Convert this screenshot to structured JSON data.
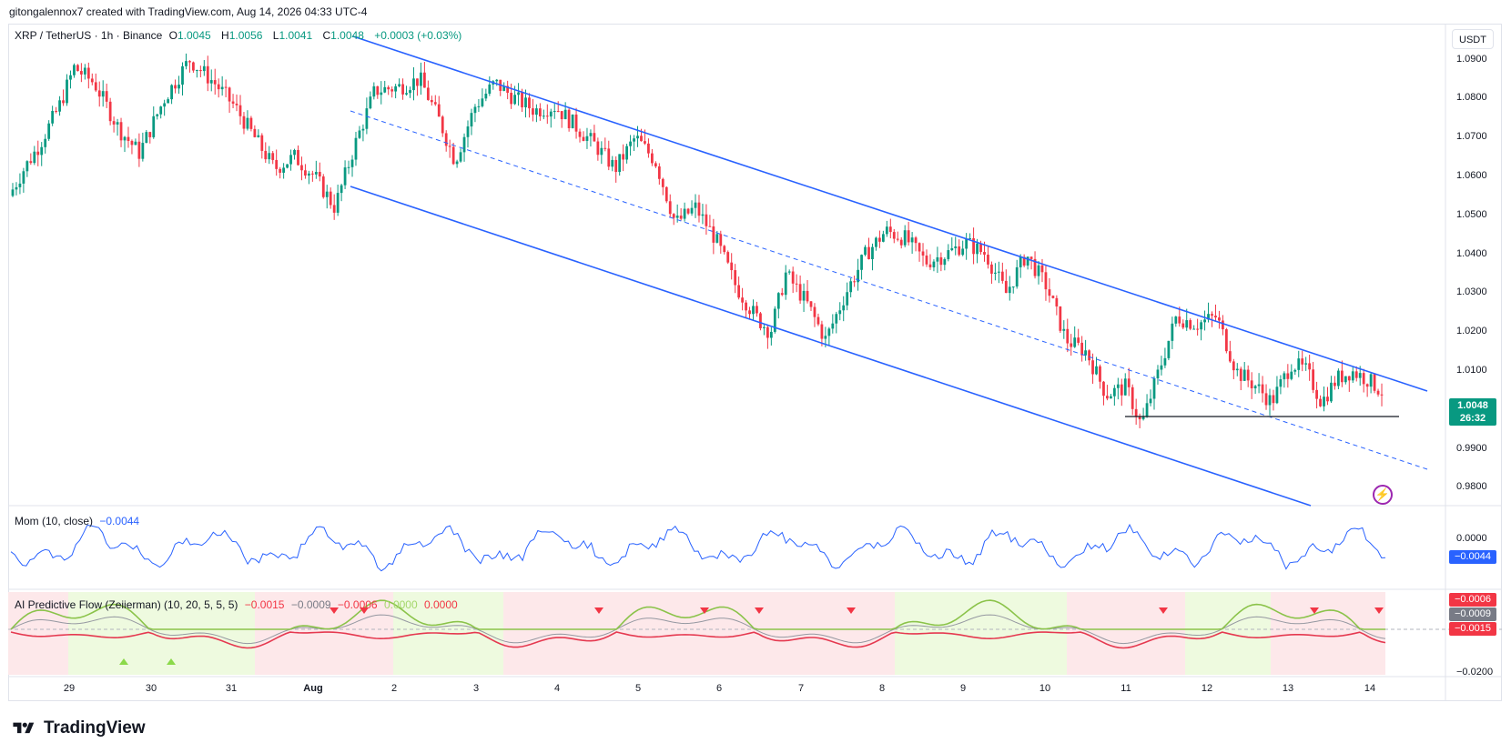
{
  "header": {
    "created_line": "gitongalennox7 created with TradingView.com, Aug 14, 2026 04:33 UTC-4"
  },
  "legend": {
    "symbol": "XRP / TetherUS · 1h · Binance",
    "open_label": "O",
    "open": "1.0045",
    "high_label": "H",
    "high": "1.0056",
    "low_label": "L",
    "low": "1.0041",
    "close_label": "C",
    "close": "1.0048",
    "change": "+0.0003 (+0.03%)"
  },
  "currency_button": "USDT",
  "price_axis": [
    "1.0900",
    "1.0800",
    "1.0700",
    "1.0600",
    "1.0500",
    "1.0400",
    "1.0300",
    "1.0200",
    "1.0100",
    "1.0000",
    "0.9900",
    "0.9800"
  ],
  "price_tag": {
    "price": "1.0048",
    "countdown": "26:32"
  },
  "momentum": {
    "title": "Mom (10, close)",
    "value": "−0.0044",
    "axis_label": "0.0000",
    "tag": "−0.0044"
  },
  "ai_flow": {
    "title": "AI Predictive Flow (Zeiierman) (10, 20, 5, 5, 5)",
    "v1": "−0.0015",
    "v2": "−0.0009",
    "v3": "−0.0006",
    "v4": "0.0000",
    "v5": "0.0000",
    "tag_a": "−0.0006",
    "tag_b": "−0.0009",
    "tag_c": "−0.0015",
    "axis_label": "−0.0200"
  },
  "time_axis": [
    "29",
    "30",
    "31",
    "Aug",
    "2",
    "3",
    "4",
    "5",
    "6",
    "7",
    "8",
    "9",
    "10",
    "11",
    "12",
    "13",
    "14"
  ],
  "brand": "TradingView",
  "colors": {
    "up": "#089981",
    "down": "#f23645",
    "channel": "#2962ff",
    "momentum": "#2962ff",
    "bull_zone": "#eefadf",
    "bear_zone": "#fde8ea"
  },
  "chart_data": {
    "type": "candlestick",
    "title": "XRP / TetherUS · 1h · Binance",
    "x_range": [
      "Jul 29",
      "Aug 14"
    ],
    "ylim": [
      0.978,
      1.095
    ],
    "price_path": [
      [
        1.055,
        0
      ],
      [
        1.062,
        6
      ],
      [
        1.068,
        12
      ],
      [
        1.078,
        20
      ],
      [
        1.088,
        26
      ],
      [
        1.084,
        34
      ],
      [
        1.072,
        44
      ],
      [
        1.066,
        52
      ],
      [
        1.08,
        62
      ],
      [
        1.09,
        72
      ],
      [
        1.084,
        82
      ],
      [
        1.078,
        90
      ],
      [
        1.07,
        98
      ],
      [
        1.062,
        106
      ],
      [
        1.065,
        114
      ],
      [
        1.06,
        122
      ],
      [
        1.052,
        130
      ],
      [
        1.068,
        138
      ],
      [
        1.082,
        146
      ],
      [
        1.083,
        156
      ],
      [
        1.085,
        164
      ],
      [
        1.074,
        172
      ],
      [
        1.064,
        178
      ],
      [
        1.078,
        186
      ],
      [
        1.084,
        194
      ],
      [
        1.08,
        202
      ],
      [
        1.077,
        210
      ],
      [
        1.078,
        218
      ],
      [
        1.073,
        226
      ],
      [
        1.068,
        234
      ],
      [
        1.062,
        242
      ],
      [
        1.07,
        250
      ],
      [
        1.064,
        258
      ],
      [
        1.048,
        266
      ],
      [
        1.052,
        274
      ],
      [
        1.044,
        282
      ],
      [
        1.032,
        290
      ],
      [
        1.024,
        298
      ],
      [
        1.02,
        304
      ],
      [
        1.035,
        310
      ],
      [
        1.028,
        318
      ],
      [
        1.018,
        326
      ],
      [
        1.03,
        334
      ],
      [
        1.04,
        342
      ],
      [
        1.046,
        350
      ],
      [
        1.044,
        358
      ],
      [
        1.038,
        366
      ],
      [
        1.04,
        374
      ],
      [
        1.043,
        382
      ],
      [
        1.04,
        390
      ],
      [
        1.03,
        398
      ],
      [
        1.04,
        406
      ],
      [
        1.032,
        414
      ],
      [
        1.018,
        422
      ],
      [
        1.015,
        430
      ],
      [
        1.004,
        438
      ],
      [
        1.006,
        446
      ],
      [
        0.996,
        452
      ],
      [
        1.008,
        458
      ],
      [
        1.024,
        466
      ],
      [
        1.022,
        474
      ],
      [
        1.024,
        482
      ],
      [
        1.01,
        490
      ],
      [
        1.006,
        498
      ],
      [
        1.002,
        504
      ],
      [
        1.012,
        512
      ],
      [
        1.01,
        518
      ],
      [
        1.002,
        524
      ],
      [
        1.008,
        530
      ],
      [
        1.01,
        536
      ],
      [
        1.008,
        542
      ],
      [
        1.0048,
        548
      ]
    ],
    "channel": {
      "upper": [
        [
          1.098,
          1.009
        ]
      ],
      "lower": [
        [
          1.06,
          0.98
        ]
      ],
      "median_dashed": true,
      "support": 1.002
    },
    "momentum_series_name": "Mom (10, close)"
  }
}
